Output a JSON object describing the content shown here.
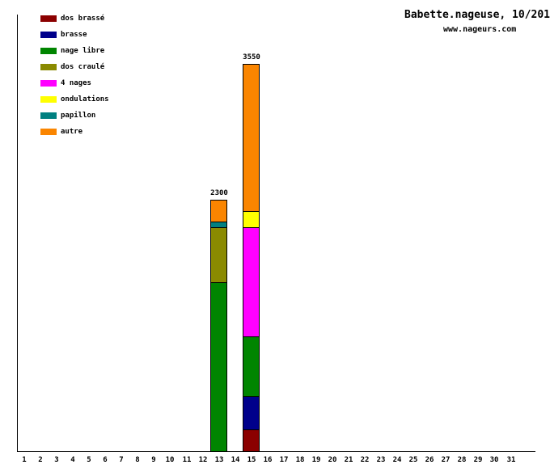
{
  "header": {
    "title": "Babette.nageuse, 10/201",
    "subtitle": "www.nageurs.com"
  },
  "colors": {
    "axis": "#000000",
    "background": "#ffffff",
    "text": "#000000"
  },
  "chart_data": {
    "type": "bar",
    "stacked": true,
    "title": "Babette.nageuse, 10/201",
    "subtitle": "www.nageurs.com",
    "xlabel": "",
    "ylabel": "",
    "ylim": [
      0,
      4000
    ],
    "grid": false,
    "legend_position": "top-left",
    "x_ticks": [
      "1",
      "2",
      "3",
      "4",
      "5",
      "6",
      "7",
      "8",
      "9",
      "10",
      "11",
      "12",
      "13",
      "14",
      "15",
      "16",
      "17",
      "18",
      "19",
      "20",
      "21",
      "22",
      "23",
      "24",
      "25",
      "26",
      "27",
      "28",
      "29",
      "30",
      "31"
    ],
    "legend": [
      {
        "label": "dos brassé",
        "color": "#8B0000"
      },
      {
        "label": "brasse",
        "color": "#00008B"
      },
      {
        "label": "nage libre",
        "color": "#008500"
      },
      {
        "label": "dos craulé",
        "color": "#8A8A00"
      },
      {
        "label": "4 nages",
        "color": "#FF00FF"
      },
      {
        "label": "ondulations",
        "color": "#FFFF00"
      },
      {
        "label": "papillon",
        "color": "#008080"
      },
      {
        "label": "autre",
        "color": "#FA8500"
      }
    ],
    "bars": [
      {
        "day": 13,
        "total": 2300,
        "total_label": "2300",
        "segments_bottom_to_top": [
          {
            "label": "nage libre",
            "value": 1550,
            "color": "#008500"
          },
          {
            "label": "dos craulé",
            "value": 500,
            "color": "#8A8A00"
          },
          {
            "label": "papillon",
            "value": 50,
            "color": "#008080"
          },
          {
            "label": "autre",
            "value": 200,
            "color": "#FA8500"
          }
        ]
      },
      {
        "day": 15,
        "total": 3550,
        "total_label": "3550",
        "segments_bottom_to_top": [
          {
            "label": "dos brassé",
            "value": 200,
            "color": "#8B0000"
          },
          {
            "label": "brasse",
            "value": 300,
            "color": "#00008B"
          },
          {
            "label": "nage libre",
            "value": 550,
            "color": "#008500"
          },
          {
            "label": "4 nages",
            "value": 1000,
            "color": "#FF00FF"
          },
          {
            "label": "ondulations",
            "value": 150,
            "color": "#FFFF00"
          },
          {
            "label": "autre",
            "value": 1350,
            "color": "#FA8500"
          }
        ]
      }
    ]
  }
}
